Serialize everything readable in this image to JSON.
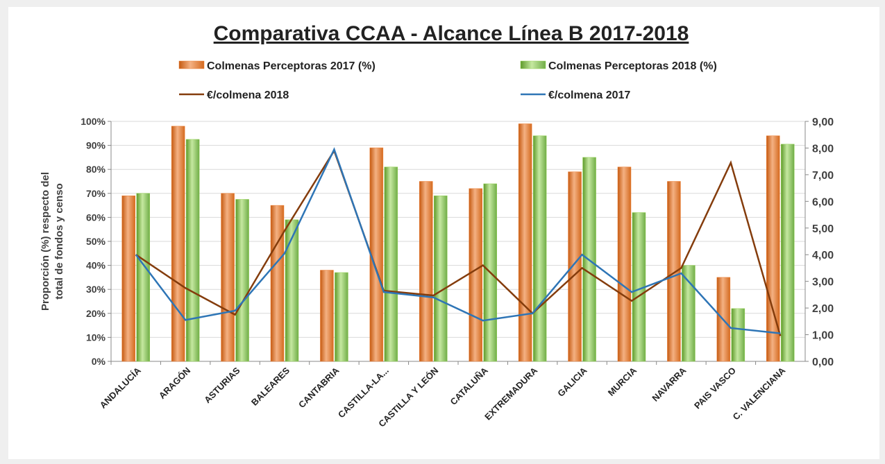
{
  "chart_data": {
    "type": "bar_line",
    "title": "Comparativa CCAA - Alcance Línea B 2017-2018",
    "y_label": [
      "Proporción (%) respecto del",
      "total de fondos y censo"
    ],
    "categories": [
      "ANDALUCÍA",
      "ARAGÓN",
      "ASTURIAS",
      "BALEARES",
      "CANTABRIA",
      "CASTILLA-LA...",
      "CASTILLA Y LEÓN",
      "CATALUÑA",
      "EXTREMADURA",
      "GALICIA",
      "MURCIA",
      "NAVARRA",
      "PAIS VASCO",
      "C. VALENCIANA"
    ],
    "series": [
      {
        "name": "Colmenas Perceptoras 2017 (%)",
        "type": "bar",
        "color": "#ed7d31",
        "values": [
          69,
          98,
          70,
          65,
          38,
          89,
          75,
          72,
          99,
          79,
          81,
          75,
          35,
          94
        ]
      },
      {
        "name": "Colmenas Perceptoras 2018 (%)",
        "type": "bar",
        "color": "#92d050",
        "values": [
          70,
          92.5,
          67.5,
          59,
          37,
          81,
          69,
          74,
          94,
          85,
          62,
          40,
          22,
          90.5
        ]
      },
      {
        "name": "€/colmena 2018",
        "type": "line",
        "axis": "y2",
        "color": "#843c0c",
        "values": [
          4.0,
          2.75,
          1.75,
          4.9,
          7.9,
          2.65,
          2.47,
          3.6,
          1.8,
          3.5,
          2.27,
          3.5,
          7.45,
          0.95
        ]
      },
      {
        "name": "€/colmena 2017",
        "type": "line",
        "axis": "y2",
        "color": "#2e75b6",
        "values": [
          4.0,
          1.55,
          1.9,
          4.05,
          7.95,
          2.6,
          2.4,
          1.53,
          1.8,
          4.0,
          2.6,
          3.3,
          1.25,
          1.05
        ]
      }
    ],
    "ylim": [
      0,
      100
    ],
    "yticks": [
      {
        "value": 0,
        "label": "0%"
      },
      {
        "value": 10,
        "label": "10%"
      },
      {
        "value": 20,
        "label": "20%"
      },
      {
        "value": 30,
        "label": "30%"
      },
      {
        "value": 40,
        "label": "40%"
      },
      {
        "value": 50,
        "label": "50%"
      },
      {
        "value": 60,
        "label": "60%"
      },
      {
        "value": 70,
        "label": "70%"
      },
      {
        "value": 80,
        "label": "80%"
      },
      {
        "value": 90,
        "label": "90%"
      },
      {
        "value": 100,
        "label": "100%"
      }
    ],
    "y2lim": [
      0,
      9
    ],
    "y2ticks": [
      {
        "value": 0,
        "label": "0,00"
      },
      {
        "value": 1,
        "label": "1,00"
      },
      {
        "value": 2,
        "label": "2,00"
      },
      {
        "value": 3,
        "label": "3,00"
      },
      {
        "value": 4,
        "label": "4,00"
      },
      {
        "value": 5,
        "label": "5,00"
      },
      {
        "value": 6,
        "label": "6,00"
      },
      {
        "value": 7,
        "label": "7,00"
      },
      {
        "value": 8,
        "label": "8,00"
      },
      {
        "value": 9,
        "label": "9,00"
      }
    ],
    "grid": true,
    "legend": "top"
  }
}
